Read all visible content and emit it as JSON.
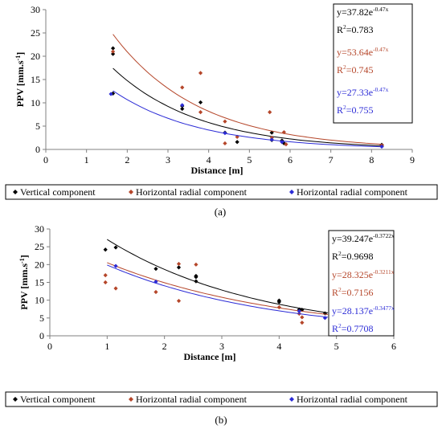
{
  "chart_data": [
    {
      "type": "scatter",
      "panel_label": "(a)",
      "xlabel": "Distance [m]",
      "ylabel": "PPV [mm.s-1]",
      "xlim": [
        0,
        9
      ],
      "ylim": [
        0,
        30
      ],
      "x_ticks": [
        0,
        1,
        2,
        3,
        4,
        5,
        6,
        7,
        8,
        9
      ],
      "y_ticks": [
        0,
        5,
        10,
        15,
        20,
        25,
        30
      ],
      "grid": false,
      "legend_position": "bottom",
      "series": [
        {
          "name": "Vertical component",
          "color": "#000000",
          "marker": "diamond",
          "points": [
            [
              1.65,
              21.7
            ],
            [
              1.65,
              20.5
            ],
            [
              1.65,
              12.0
            ],
            [
              3.35,
              9.3
            ],
            [
              3.35,
              8.7
            ],
            [
              3.8,
              10.1
            ],
            [
              4.4,
              3.6
            ],
            [
              4.7,
              1.6
            ],
            [
              5.55,
              3.6
            ],
            [
              5.55,
              2.0
            ],
            [
              5.8,
              1.9
            ],
            [
              5.85,
              1.3
            ],
            [
              8.25,
              1.0
            ]
          ],
          "trend_equation": "y=37.82e",
          "trend_exponent": "-0.47x",
          "r2_label": "R2=0.783",
          "fit": {
            "a": 37.82,
            "b": -0.47,
            "x_from": 1.65,
            "x_to": 8.3
          }
        },
        {
          "name": "Horizontal radial component",
          "color": "#b5462a",
          "marker": "diamond",
          "points": [
            [
              1.65,
              21.0
            ],
            [
              3.35,
              13.3
            ],
            [
              3.8,
              16.4
            ],
            [
              3.8,
              8.0
            ],
            [
              4.4,
              6.0
            ],
            [
              4.4,
              1.3
            ],
            [
              4.7,
              2.7
            ],
            [
              5.5,
              8.0
            ],
            [
              5.55,
              2.5
            ],
            [
              5.85,
              3.7
            ],
            [
              5.8,
              1.6
            ],
            [
              5.9,
              1.1
            ],
            [
              8.25,
              0.8
            ]
          ],
          "trend_equation": "y=53.64e",
          "trend_exponent": "-0.47x",
          "r2_label": "R2=0.745",
          "fit": {
            "a": 53.64,
            "b": -0.47,
            "x_from": 1.65,
            "x_to": 8.3
          }
        },
        {
          "name": "Horizontal radial component",
          "color": "#2b2bd6",
          "marker": "diamond",
          "points": [
            [
              1.6,
              11.9
            ],
            [
              3.35,
              9.5
            ],
            [
              4.4,
              3.5
            ],
            [
              5.55,
              2.1
            ],
            [
              5.8,
              1.6
            ],
            [
              8.25,
              0.6
            ]
          ],
          "trend_equation": "y=27.33e",
          "trend_exponent": "-0.47x",
          "r2_label": "R2=0.755",
          "fit": {
            "a": 27.33,
            "b": -0.47,
            "x_from": 1.65,
            "x_to": 8.3
          }
        }
      ]
    },
    {
      "type": "scatter",
      "panel_label": "(b)",
      "xlabel": "Distance [m]",
      "ylabel": "PPV [mm.s-1]",
      "xlim": [
        0,
        6
      ],
      "ylim": [
        0,
        30
      ],
      "x_ticks": [
        0,
        1,
        2,
        3,
        4,
        5,
        6
      ],
      "y_ticks": [
        0,
        5,
        10,
        15,
        20,
        25,
        30
      ],
      "grid": false,
      "legend_position": "bottom",
      "series": [
        {
          "name": "Vertical component",
          "color": "#000000",
          "marker": "diamond",
          "points": [
            [
              0.97,
              24.2
            ],
            [
              1.15,
              24.8
            ],
            [
              1.85,
              18.8
            ],
            [
              2.25,
              19.2
            ],
            [
              2.55,
              16.8
            ],
            [
              2.55,
              16.5
            ],
            [
              2.55,
              15.3
            ],
            [
              4.0,
              9.9
            ],
            [
              4.0,
              9.5
            ],
            [
              4.35,
              7.4
            ],
            [
              4.4,
              7.3
            ],
            [
              4.8,
              6.3
            ]
          ],
          "trend_equation": "y=39.247e",
          "trend_exponent": "-0.3722x",
          "r2_label": "R2=0.9698",
          "fit": {
            "a": 39.247,
            "b": -0.3722,
            "x_from": 1.0,
            "x_to": 4.85
          }
        },
        {
          "name": "Horizontal radial component",
          "color": "#b5462a",
          "marker": "diamond",
          "points": [
            [
              0.97,
              17.0
            ],
            [
              0.97,
              15.0
            ],
            [
              1.15,
              13.3
            ],
            [
              1.85,
              12.3
            ],
            [
              2.25,
              20.2
            ],
            [
              2.25,
              9.8
            ],
            [
              2.55,
              20.0
            ],
            [
              4.0,
              8.0
            ],
            [
              4.35,
              6.2
            ],
            [
              4.4,
              3.7
            ],
            [
              4.4,
              5.2
            ]
          ],
          "trend_equation": "y=28.325e",
          "trend_exponent": "-0.3211x",
          "r2_label": "R2=0.7156",
          "fit": {
            "a": 28.325,
            "b": -0.3211,
            "x_from": 1.0,
            "x_to": 4.85
          }
        },
        {
          "name": "Horizontal radial component",
          "color": "#2b2bd6",
          "marker": "diamond",
          "points": [
            [
              1.15,
              19.6
            ],
            [
              1.85,
              15.2
            ],
            [
              4.35,
              6.9
            ],
            [
              4.8,
              5.0
            ]
          ],
          "trend_equation": "y=28.137e",
          "trend_exponent": "-0.3477x",
          "r2_label": "R2=0.7708",
          "fit": {
            "a": 28.137,
            "b": -0.3477,
            "x_from": 1.0,
            "x_to": 4.85
          }
        }
      ]
    }
  ]
}
